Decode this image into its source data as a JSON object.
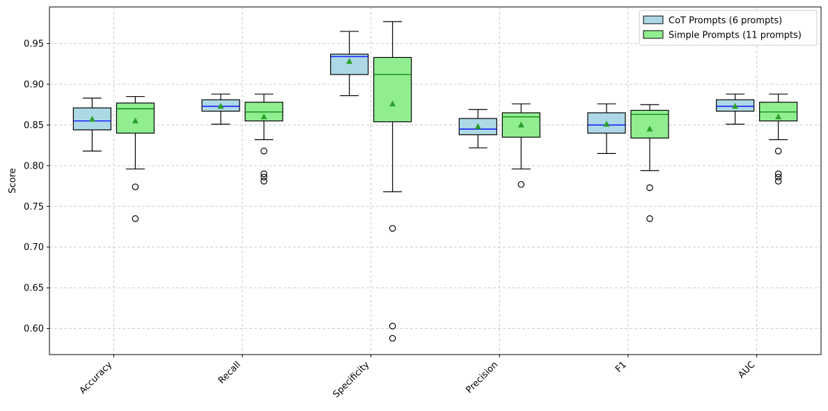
{
  "chart_data": {
    "type": "box",
    "title": "",
    "xlabel": "",
    "ylabel": "Score",
    "ylim": [
      0.568,
      0.995
    ],
    "yticks": [
      0.6,
      0.65,
      0.7,
      0.75,
      0.8,
      0.85,
      0.9,
      0.95
    ],
    "ytick_labels": [
      "0.60",
      "0.65",
      "0.70",
      "0.75",
      "0.80",
      "0.85",
      "0.90",
      "0.95"
    ],
    "grid": true,
    "legend_position": "top-right",
    "categories": [
      "Accuracy",
      "Recall",
      "Specificity",
      "Precision",
      "F1",
      "AUC"
    ],
    "series": [
      {
        "name": "CoT Prompts (6 prompts)",
        "color": "#add8e6",
        "median_color": "#0000ff",
        "boxes": [
          {
            "whislo": 0.818,
            "q1": 0.844,
            "med": 0.855,
            "q3": 0.871,
            "whishi": 0.883,
            "mean": 0.857,
            "fliers": []
          },
          {
            "whislo": 0.851,
            "q1": 0.867,
            "med": 0.873,
            "q3": 0.881,
            "whishi": 0.888,
            "mean": 0.873,
            "fliers": []
          },
          {
            "whislo": 0.886,
            "q1": 0.912,
            "med": 0.934,
            "q3": 0.937,
            "whishi": 0.965,
            "mean": 0.928,
            "fliers": []
          },
          {
            "whislo": 0.822,
            "q1": 0.838,
            "med": 0.845,
            "q3": 0.858,
            "whishi": 0.869,
            "mean": 0.848,
            "fliers": []
          },
          {
            "whislo": 0.815,
            "q1": 0.84,
            "med": 0.85,
            "q3": 0.865,
            "whishi": 0.876,
            "mean": 0.851,
            "fliers": []
          },
          {
            "whislo": 0.851,
            "q1": 0.867,
            "med": 0.873,
            "q3": 0.881,
            "whishi": 0.888,
            "mean": 0.873,
            "fliers": []
          }
        ]
      },
      {
        "name": "Simple Prompts (11 prompts)",
        "color": "#90ee90",
        "median_color": "#008000",
        "boxes": [
          {
            "whislo": 0.796,
            "q1": 0.84,
            "med": 0.87,
            "q3": 0.877,
            "whishi": 0.885,
            "mean": 0.855,
            "fliers": [
              0.774,
              0.735
            ]
          },
          {
            "whislo": 0.832,
            "q1": 0.855,
            "med": 0.866,
            "q3": 0.878,
            "whishi": 0.888,
            "mean": 0.86,
            "fliers": [
              0.818,
              0.79,
              0.786,
              0.781
            ]
          },
          {
            "whislo": 0.768,
            "q1": 0.854,
            "med": 0.912,
            "q3": 0.933,
            "whishi": 0.977,
            "mean": 0.876,
            "fliers": [
              0.723,
              0.603,
              0.588
            ]
          },
          {
            "whislo": 0.796,
            "q1": 0.835,
            "med": 0.86,
            "q3": 0.865,
            "whishi": 0.876,
            "mean": 0.85,
            "fliers": [
              0.777
            ]
          },
          {
            "whislo": 0.794,
            "q1": 0.834,
            "med": 0.863,
            "q3": 0.868,
            "whishi": 0.875,
            "mean": 0.845,
            "fliers": [
              0.773,
              0.735
            ]
          },
          {
            "whislo": 0.832,
            "q1": 0.855,
            "med": 0.866,
            "q3": 0.878,
            "whishi": 0.888,
            "mean": 0.86,
            "fliers": [
              0.818,
              0.79,
              0.786,
              0.781
            ]
          }
        ]
      }
    ],
    "mean_marker_color": "#2ca02c"
  }
}
